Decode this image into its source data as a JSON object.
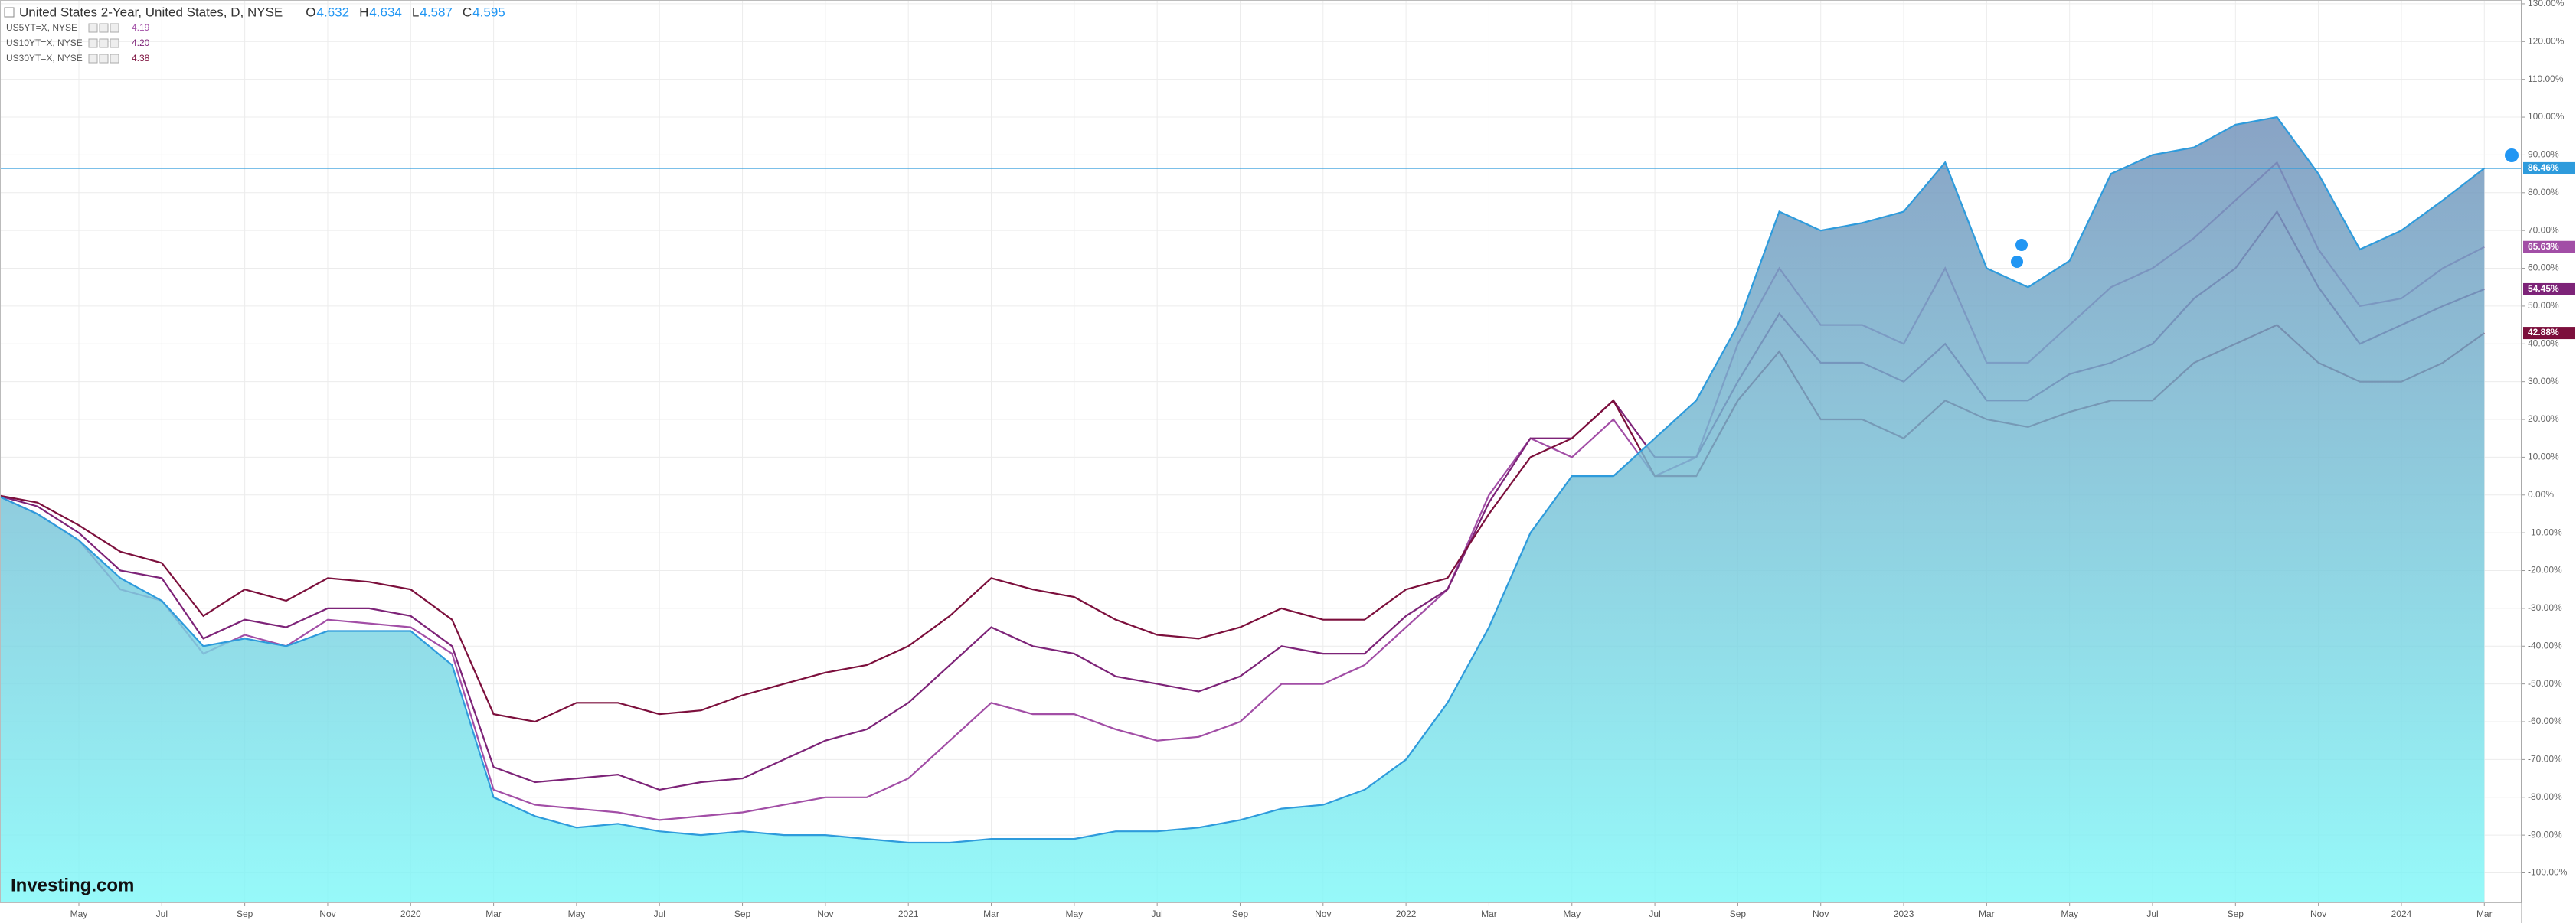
{
  "chart_data": {
    "type": "line",
    "title": "United States 2-Year, United States, D, NYSE",
    "ohlc": [
      {
        "label": "O",
        "value": {
          "value": 4.632,
          "label": "4.632"
        }
      },
      {
        "label": "H",
        "value": {
          "value": 4.634,
          "label": "4.634"
        }
      },
      {
        "label": "L",
        "value": {
          "value": 4.587,
          "label": "4.587"
        }
      },
      {
        "label": "C",
        "value": {
          "value": 4.595,
          "label": "4.595"
        }
      }
    ],
    "watermark": "Investing.com",
    "categories": [
      null,
      null,
      "May",
      null,
      "Jul",
      null,
      "Sep",
      null,
      "Nov",
      null,
      "2020",
      null,
      "Mar",
      null,
      "May",
      null,
      "Jul",
      null,
      "Sep",
      null,
      "Nov",
      null,
      "2021",
      null,
      "Mar",
      null,
      "May",
      null,
      "Jul",
      null,
      "Sep",
      null,
      "Nov",
      null,
      "2022",
      null,
      "Mar",
      null,
      "May",
      null,
      "Jul",
      null,
      "Sep",
      null,
      "Nov",
      null,
      "2023",
      null,
      "Mar",
      null,
      "May",
      null,
      "Jul",
      null,
      "Sep",
      null,
      "Nov",
      null,
      "2024",
      null,
      "Mar"
    ],
    "series": [
      {
        "name": "United States 2-Year, United States, D, NYSE",
        "color": "#2e9bdc",
        "area": true,
        "values": [
          0,
          -5,
          -12,
          -22,
          -28,
          -40,
          -38,
          -40,
          -36,
          -36,
          -36,
          -45,
          -80,
          -85,
          -88,
          -87,
          -89,
          -90,
          -89,
          -90,
          -90,
          -91,
          -92,
          -92,
          -91,
          -91,
          -91,
          -89,
          -89,
          -88,
          -86,
          -83,
          -82,
          -78,
          -70,
          -55,
          -35,
          -10,
          5,
          5,
          15,
          25,
          45,
          75,
          70,
          72,
          75,
          88,
          60,
          55,
          62,
          85,
          90,
          92,
          98,
          100,
          85,
          65,
          70,
          78,
          86.46
        ],
        "value_labels": [
          null,
          null,
          null,
          null,
          null,
          null,
          null,
          null,
          null,
          null,
          null,
          null,
          null,
          null,
          null,
          null,
          null,
          null,
          null,
          null,
          null,
          null,
          null,
          null,
          null,
          null,
          null,
          null,
          null,
          null,
          null,
          null,
          null,
          null,
          null,
          null,
          null,
          null,
          null,
          null,
          null,
          null,
          null,
          null,
          null,
          null,
          null,
          null,
          null,
          null,
          null,
          null,
          null,
          null,
          null,
          null,
          null,
          null,
          null,
          null,
          "86.46%"
        ]
      },
      {
        "name": "US5YT=X, NYSE",
        "color": "#a24ea6",
        "last": {
          "value": 4.19,
          "label": "4.19"
        },
        "values": [
          0,
          -5,
          -12,
          -25,
          -28,
          -42,
          -37,
          -40,
          -33,
          -34,
          -35,
          -42,
          -78,
          -82,
          -83,
          -84,
          -86,
          -85,
          -84,
          -82,
          -80,
          -80,
          -75,
          -65,
          -55,
          -58,
          -58,
          -62,
          -65,
          -64,
          -60,
          -50,
          -50,
          -45,
          -35,
          -25,
          0,
          15,
          10,
          20,
          5,
          10,
          40,
          60,
          45,
          45,
          40,
          60,
          35,
          35,
          45,
          55,
          60,
          68,
          78,
          88,
          65,
          50,
          52,
          60,
          65.63
        ],
        "value_labels": [
          null,
          null,
          null,
          null,
          null,
          null,
          null,
          null,
          null,
          null,
          null,
          null,
          null,
          null,
          null,
          null,
          null,
          null,
          null,
          null,
          null,
          null,
          null,
          null,
          null,
          null,
          null,
          null,
          null,
          null,
          null,
          null,
          null,
          null,
          null,
          null,
          null,
          null,
          null,
          null,
          null,
          null,
          null,
          null,
          null,
          null,
          null,
          null,
          null,
          null,
          null,
          null,
          null,
          null,
          null,
          null,
          null,
          null,
          null,
          null,
          "65.63%"
        ]
      },
      {
        "name": "US10YT=X, NYSE",
        "color": "#7d2378",
        "last": {
          "value": 4.2,
          "label": "4.20"
        },
        "values": [
          0,
          -3,
          -10,
          -20,
          -22,
          -38,
          -33,
          -35,
          -30,
          -30,
          -32,
          -40,
          -72,
          -76,
          -75,
          -74,
          -78,
          -76,
          -75,
          -70,
          -65,
          -62,
          -55,
          -45,
          -35,
          -40,
          -42,
          -48,
          -50,
          -52,
          -48,
          -40,
          -42,
          -42,
          -32,
          -25,
          -2,
          15,
          15,
          25,
          10,
          10,
          30,
          48,
          35,
          35,
          30,
          40,
          25,
          25,
          32,
          35,
          40,
          52,
          60,
          75,
          55,
          40,
          45,
          50,
          54.45
        ],
        "value_labels": [
          null,
          null,
          null,
          null,
          null,
          null,
          null,
          null,
          null,
          null,
          null,
          null,
          null,
          null,
          null,
          null,
          null,
          null,
          null,
          null,
          null,
          null,
          null,
          null,
          null,
          null,
          null,
          null,
          null,
          null,
          null,
          null,
          null,
          null,
          null,
          null,
          null,
          null,
          null,
          null,
          null,
          null,
          null,
          null,
          null,
          null,
          null,
          null,
          null,
          null,
          null,
          null,
          null,
          null,
          null,
          null,
          null,
          null,
          null,
          null,
          "54.45%"
        ]
      },
      {
        "name": "US30YT=X, NYSE",
        "color": "#7c0f3c",
        "last": {
          "value": 4.38,
          "label": "4.38"
        },
        "values": [
          0,
          -2,
          -8,
          -15,
          -18,
          -32,
          -25,
          -28,
          -22,
          -23,
          -25,
          -33,
          -58,
          -60,
          -55,
          -55,
          -58,
          -57,
          -53,
          -50,
          -47,
          -45,
          -40,
          -32,
          -22,
          -25,
          -27,
          -33,
          -37,
          -38,
          -35,
          -30,
          -33,
          -33,
          -25,
          -22,
          -5,
          10,
          15,
          25,
          5,
          5,
          25,
          38,
          20,
          20,
          15,
          25,
          20,
          18,
          22,
          25,
          25,
          35,
          40,
          45,
          35,
          30,
          30,
          35,
          42.88
        ],
        "value_labels": [
          null,
          null,
          null,
          null,
          null,
          null,
          null,
          null,
          null,
          null,
          null,
          null,
          null,
          null,
          null,
          null,
          null,
          null,
          null,
          null,
          null,
          null,
          null,
          null,
          null,
          null,
          null,
          null,
          null,
          null,
          null,
          null,
          null,
          null,
          null,
          null,
          null,
          null,
          null,
          null,
          null,
          null,
          null,
          null,
          null,
          null,
          null,
          null,
          null,
          null,
          null,
          null,
          null,
          null,
          null,
          null,
          null,
          null,
          null,
          null,
          "42.88%"
        ]
      }
    ],
    "ylim": [
      -108,
      131
    ],
    "yticks": [
      {
        "value": -100,
        "label": "-100.00%"
      },
      {
        "value": -90,
        "label": "-90.00%"
      },
      {
        "value": -80,
        "label": "-80.00%"
      },
      {
        "value": -70,
        "label": "-70.00%"
      },
      {
        "value": -60,
        "label": "-60.00%"
      },
      {
        "value": -50,
        "label": "-50.00%"
      },
      {
        "value": -40,
        "label": "-40.00%"
      },
      {
        "value": -30,
        "label": "-30.00%"
      },
      {
        "value": -20,
        "label": "-20.00%"
      },
      {
        "value": -10,
        "label": "-10.00%"
      },
      {
        "value": 0,
        "label": "0.00%"
      },
      {
        "value": 10,
        "label": "10.00%"
      },
      {
        "value": 20,
        "label": "20.00%"
      },
      {
        "value": 30,
        "label": "30.00%"
      },
      {
        "value": 40,
        "label": "40.00%"
      },
      {
        "value": 50,
        "label": "50.00%"
      },
      {
        "value": 60,
        "label": "60.00%"
      },
      {
        "value": 70,
        "label": "70.00%"
      },
      {
        "value": 80,
        "label": "80.00%"
      },
      {
        "value": 90,
        "label": "90.00%"
      },
      {
        "value": 100,
        "label": "100.00%"
      },
      {
        "value": 110,
        "label": "110.00%"
      },
      {
        "value": 120,
        "label": "120.00%"
      },
      {
        "value": 130,
        "label": "130.00%"
      }
    ],
    "grid": true,
    "price_line": true
  }
}
